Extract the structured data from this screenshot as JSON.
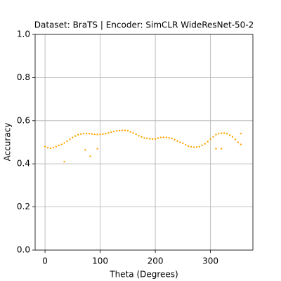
{
  "chart_data": {
    "type": "scatter",
    "title": "Dataset: BraTS | Encoder: SimCLR WideResNet-50-2",
    "x_label": "Theta (Degrees)",
    "y_label": "Accuracy",
    "color": "#ffa500",
    "grid": true,
    "xlim": [
      -17.95,
      376.95
    ],
    "ylim": [
      0,
      1
    ],
    "xticks": [
      0,
      100,
      200,
      300
    ],
    "yticks": [
      {
        "value": 0,
        "label": "0.0"
      },
      0.2,
      0.4,
      0.6,
      0.8,
      {
        "value": 1,
        "label": "1.0"
      }
    ],
    "x": [
      0,
      5,
      10,
      15,
      20,
      25,
      30,
      35,
      40,
      45,
      50,
      55,
      60,
      65,
      70,
      75,
      80,
      85,
      90,
      95,
      100,
      105,
      110,
      115,
      120,
      125,
      130,
      135,
      140,
      145,
      150,
      155,
      160,
      165,
      170,
      175,
      180,
      185,
      190,
      195,
      200,
      205,
      210,
      215,
      220,
      225,
      230,
      235,
      240,
      245,
      250,
      255,
      260,
      265,
      270,
      275,
      280,
      285,
      290,
      295,
      300,
      305,
      310,
      315,
      320,
      325,
      330,
      335,
      340,
      345,
      350,
      355,
      35,
      73,
      82,
      95,
      310,
      320,
      355
    ],
    "values": [
      0.48,
      0.475,
      0.472,
      0.475,
      0.48,
      0.485,
      0.49,
      0.497,
      0.505,
      0.514,
      0.522,
      0.529,
      0.535,
      0.538,
      0.54,
      0.541,
      0.54,
      0.538,
      0.537,
      0.536,
      0.537,
      0.538,
      0.54,
      0.543,
      0.547,
      0.55,
      0.553,
      0.554,
      0.555,
      0.555,
      0.553,
      0.548,
      0.543,
      0.537,
      0.53,
      0.525,
      0.52,
      0.518,
      0.516,
      0.515,
      0.515,
      0.519,
      0.522,
      0.523,
      0.522,
      0.52,
      0.518,
      0.512,
      0.505,
      0.5,
      0.495,
      0.488,
      0.482,
      0.479,
      0.477,
      0.478,
      0.48,
      0.486,
      0.493,
      0.503,
      0.515,
      0.525,
      0.535,
      0.54,
      0.542,
      0.542,
      0.54,
      0.533,
      0.525,
      0.513,
      0.5,
      0.49,
      0.41,
      0.465,
      0.435,
      0.47,
      0.47,
      0.47,
      0.54
    ]
  }
}
